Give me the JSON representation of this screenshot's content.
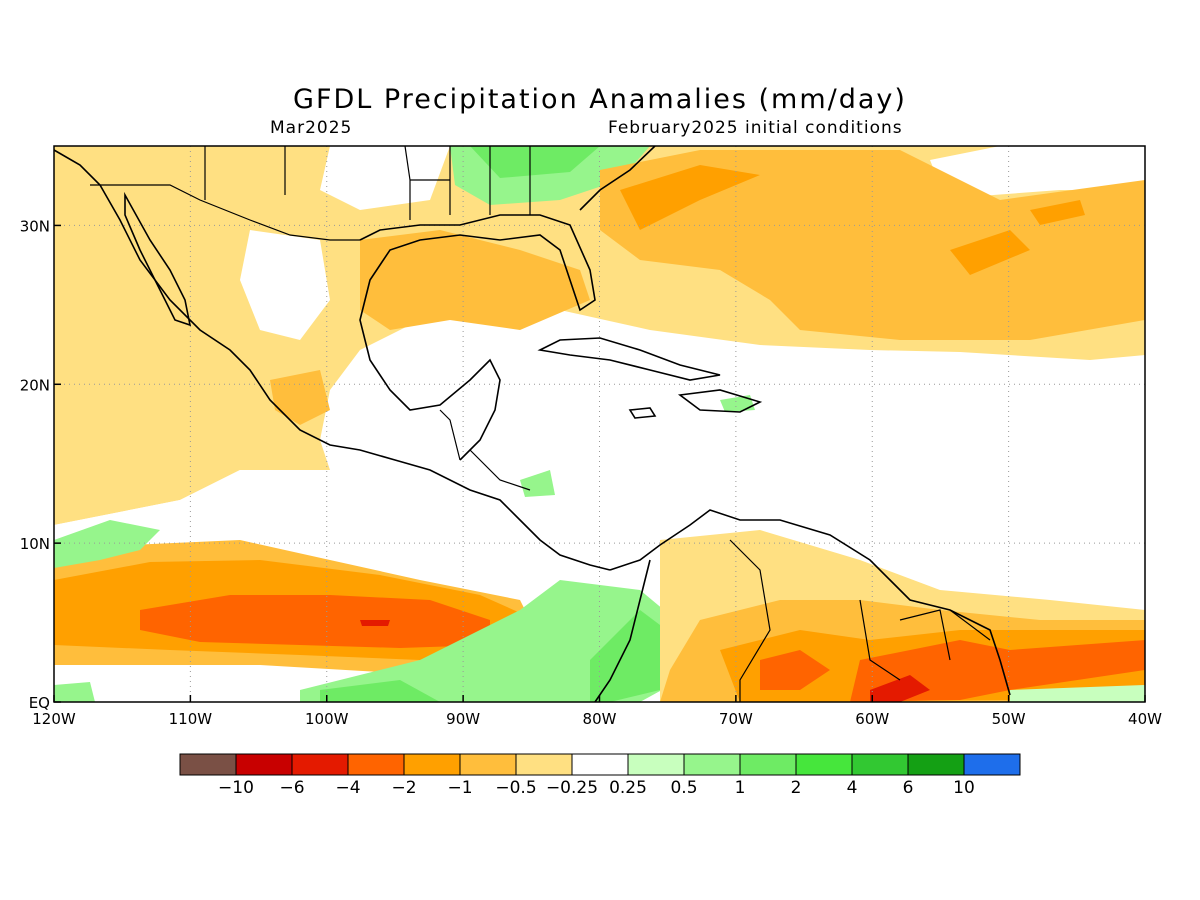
{
  "title": "GFDL Precipitation Anamalies (mm/day)",
  "subtitle_left": "Mar2025",
  "subtitle_right": "February2025 initial conditions",
  "map": {
    "lon_range": [
      -120,
      -40
    ],
    "lat_range": [
      0,
      35
    ],
    "x_ticks": [
      {
        "lon": -120,
        "label": "120W"
      },
      {
        "lon": -110,
        "label": "110W"
      },
      {
        "lon": -100,
        "label": "100W"
      },
      {
        "lon": -90,
        "label": "90W"
      },
      {
        "lon": -80,
        "label": "80W"
      },
      {
        "lon": -70,
        "label": "70W"
      },
      {
        "lon": -60,
        "label": "60W"
      },
      {
        "lon": -50,
        "label": "50W"
      },
      {
        "lon": -40,
        "label": "40W"
      }
    ],
    "y_ticks": [
      {
        "lat": 0,
        "label": "EQ"
      },
      {
        "lat": 10,
        "label": "10N"
      },
      {
        "lat": 20,
        "label": "20N"
      },
      {
        "lat": 30,
        "label": "30N"
      }
    ],
    "grid": true
  },
  "colorbar": {
    "colors": [
      "#7a5045",
      "#c80000",
      "#e41a00",
      "#ff6400",
      "#ffa000",
      "#ffbe3c",
      "#ffe082",
      "#ffffff",
      "#c8ffbe",
      "#96f58c",
      "#6eeb64",
      "#46e63c",
      "#32c832",
      "#14a014",
      "#1e6eeb"
    ],
    "labels": [
      "−10",
      "−6",
      "−4",
      "−2",
      "−1",
      "−0.5",
      "−0.25",
      "0.25",
      "0.5",
      "1",
      "2",
      "4",
      "6",
      "10"
    ]
  }
}
